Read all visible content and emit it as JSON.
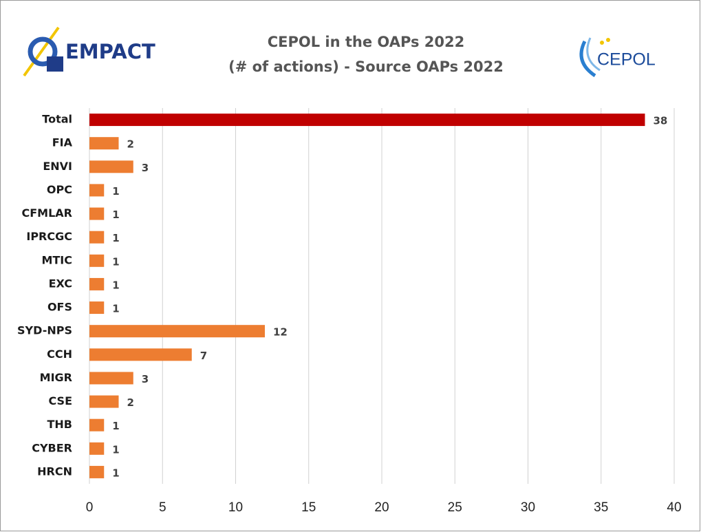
{
  "logos": {
    "left": "EMPACT",
    "right": "CEPOL"
  },
  "chart_data": {
    "type": "barh",
    "title": "CEPOL  in the OAPs 2022",
    "subtitle": "(# of actions) - Source OAPs 2022",
    "categories": [
      "Total",
      "FIA",
      "ENVI",
      "OPC",
      "CFMLAR",
      "IPRCGC",
      "MTIC",
      "EXC",
      "OFS",
      "SYD-NPS",
      "CCH",
      "MIGR",
      "CSE",
      "THB",
      "CYBER",
      "HRCN"
    ],
    "values": [
      38,
      2,
      3,
      1,
      1,
      1,
      1,
      1,
      1,
      12,
      7,
      3,
      2,
      1,
      1,
      1
    ],
    "colors": [
      "#c00000",
      "#ed7d31",
      "#ed7d31",
      "#ed7d31",
      "#ed7d31",
      "#ed7d31",
      "#ed7d31",
      "#ed7d31",
      "#ed7d31",
      "#ed7d31",
      "#ed7d31",
      "#ed7d31",
      "#ed7d31",
      "#ed7d31",
      "#ed7d31",
      "#ed7d31"
    ],
    "xlim": [
      0,
      40
    ],
    "xticks": [
      0,
      5,
      10,
      15,
      20,
      25,
      30,
      35,
      40
    ],
    "grid": true
  }
}
